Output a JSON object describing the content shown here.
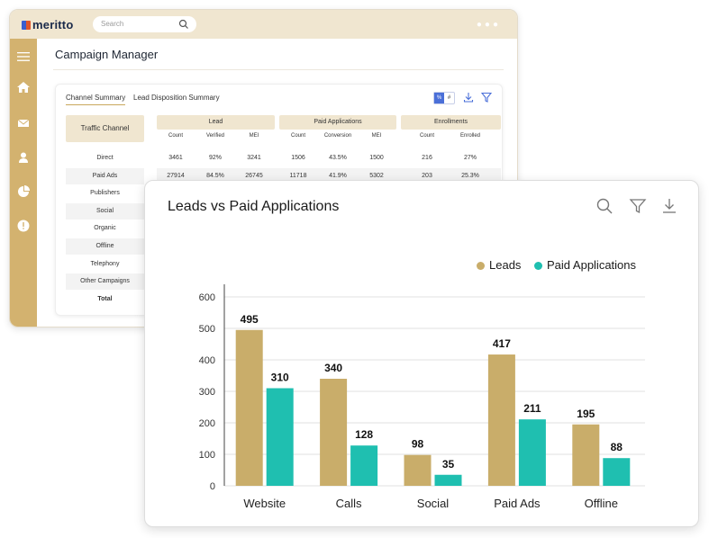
{
  "app": {
    "logo": "meritto",
    "search_placeholder": "Search",
    "page_title": "Campaign Manager"
  },
  "tabs": [
    "Channel Summary",
    "Lead Disposition Summary"
  ],
  "toggle": {
    "percent": "%",
    "hash": "#"
  },
  "table": {
    "traffic_channel_header": "Traffic Channel",
    "groups": [
      {
        "title": "Lead",
        "cols": [
          "Count",
          "Verified",
          "MEI"
        ]
      },
      {
        "title": "Paid Applications",
        "cols": [
          "Count",
          "Conversion",
          "MEI"
        ]
      },
      {
        "title": "Enrollments",
        "cols": [
          "Count",
          "Enrolled"
        ]
      }
    ],
    "rows": [
      {
        "label": "Direct",
        "values": [
          "3461",
          "92%",
          "3241",
          "1506",
          "43.5%",
          "1500",
          "216",
          "27%"
        ]
      },
      {
        "label": "Paid Ads",
        "values": [
          "27914",
          "84.5%",
          "26745",
          "11718",
          "41.9%",
          "5302",
          "203",
          "25.3%"
        ]
      },
      {
        "label": "Publishers",
        "values": []
      },
      {
        "label": "Social",
        "values": []
      },
      {
        "label": "Organic",
        "values": []
      },
      {
        "label": "Offline",
        "values": []
      },
      {
        "label": "Telephony",
        "values": []
      },
      {
        "label": "Other Campaigns",
        "values": []
      },
      {
        "label": "Total",
        "values": []
      }
    ]
  },
  "chart_data": {
    "type": "bar",
    "title": "Leads vs Paid Applications",
    "categories": [
      "Website",
      "Calls",
      "Social",
      "Paid Ads",
      "Offline"
    ],
    "series": [
      {
        "name": "Leads",
        "values": [
          495,
          340,
          98,
          417,
          195
        ],
        "color": "#c9ad6a"
      },
      {
        "name": "Paid Applications",
        "values": [
          310,
          128,
          35,
          211,
          88
        ],
        "color": "#1fbfb0"
      }
    ],
    "ylim": [
      0,
      600
    ],
    "yticks": [
      0,
      100,
      200,
      300,
      400,
      500,
      600
    ],
    "grid": true,
    "legend": "top-right",
    "xlabel": "",
    "ylabel": ""
  }
}
